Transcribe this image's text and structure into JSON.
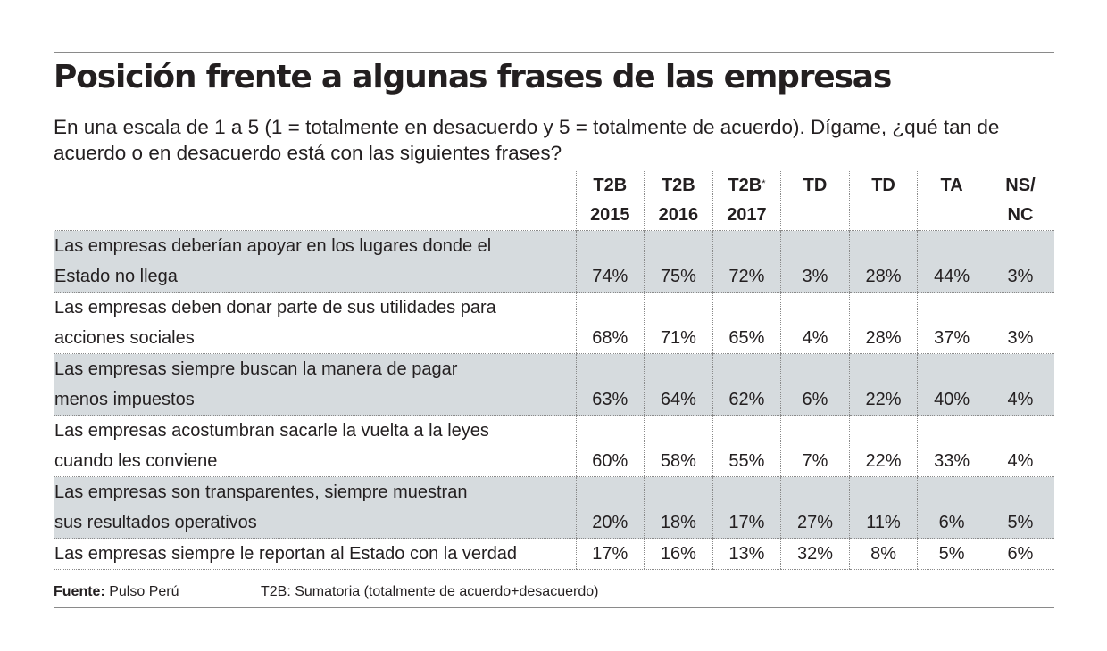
{
  "title": "Posición frente a algunas frases de las empresas",
  "subtitle": "En una escala de 1 a 5 (1 = totalmente en desacuerdo y 5 = totalmente de acuerdo). Dígame, ¿qué tan de acuerdo o en desacuerdo está con las siguientes frases?",
  "chart_data": {
    "type": "table",
    "title": "Posición frente a algunas frases de las empresas",
    "columns": [
      {
        "line1": "T2B",
        "line2": "2015",
        "mark": ""
      },
      {
        "line1": "T2B",
        "line2": "2016",
        "mark": ""
      },
      {
        "line1": "T2B",
        "line2": "2017",
        "mark": "*"
      },
      {
        "line1": "TD",
        "line2": "",
        "mark": ""
      },
      {
        "line1": "TD",
        "line2": "",
        "mark": ""
      },
      {
        "line1": "TA",
        "line2": "",
        "mark": ""
      },
      {
        "line1": "NS/",
        "line2": "NC",
        "mark": ""
      }
    ],
    "rows": [
      {
        "label_lines": [
          "Las empresas deberían apoyar en los lugares donde el",
          "Estado no llega"
        ],
        "values": [
          "74%",
          "75%",
          "72%",
          "3%",
          "28%",
          "44%",
          "3%"
        ]
      },
      {
        "label_lines": [
          "Las empresas deben donar parte de sus utilidades para",
          "acciones sociales"
        ],
        "values": [
          "68%",
          "71%",
          "65%",
          "4%",
          "28%",
          "37%",
          "3%"
        ]
      },
      {
        "label_lines": [
          "Las empresas siempre buscan la manera de pagar",
          "menos impuestos"
        ],
        "values": [
          "63%",
          "64%",
          "62%",
          "6%",
          "22%",
          "40%",
          "4%"
        ]
      },
      {
        "label_lines": [
          "Las empresas acostumbran sacarle la vuelta a la leyes",
          "cuando les conviene"
        ],
        "values": [
          "60%",
          "58%",
          "55%",
          "7%",
          "22%",
          "33%",
          "4%"
        ]
      },
      {
        "label_lines": [
          "Las empresas son transparentes, siempre muestran",
          "sus resultados operativos"
        ],
        "values": [
          "20%",
          "18%",
          "17%",
          "27%",
          "11%",
          "6%",
          "5%"
        ]
      },
      {
        "label_lines": [
          "Las empresas siempre le reportan al Estado con la verdad"
        ],
        "values": [
          "17%",
          "16%",
          "13%",
          "32%",
          "8%",
          "5%",
          "6%"
        ]
      }
    ]
  },
  "footer": {
    "source_label": "Fuente:",
    "source_value": " Pulso Perú",
    "note": "T2B: Sumatoria (totalmente de acuerdo+desacuerdo)"
  },
  "colors": {
    "shaded_row": "#d6dbde",
    "text": "#231f20",
    "rule": "#8a8a8a"
  }
}
